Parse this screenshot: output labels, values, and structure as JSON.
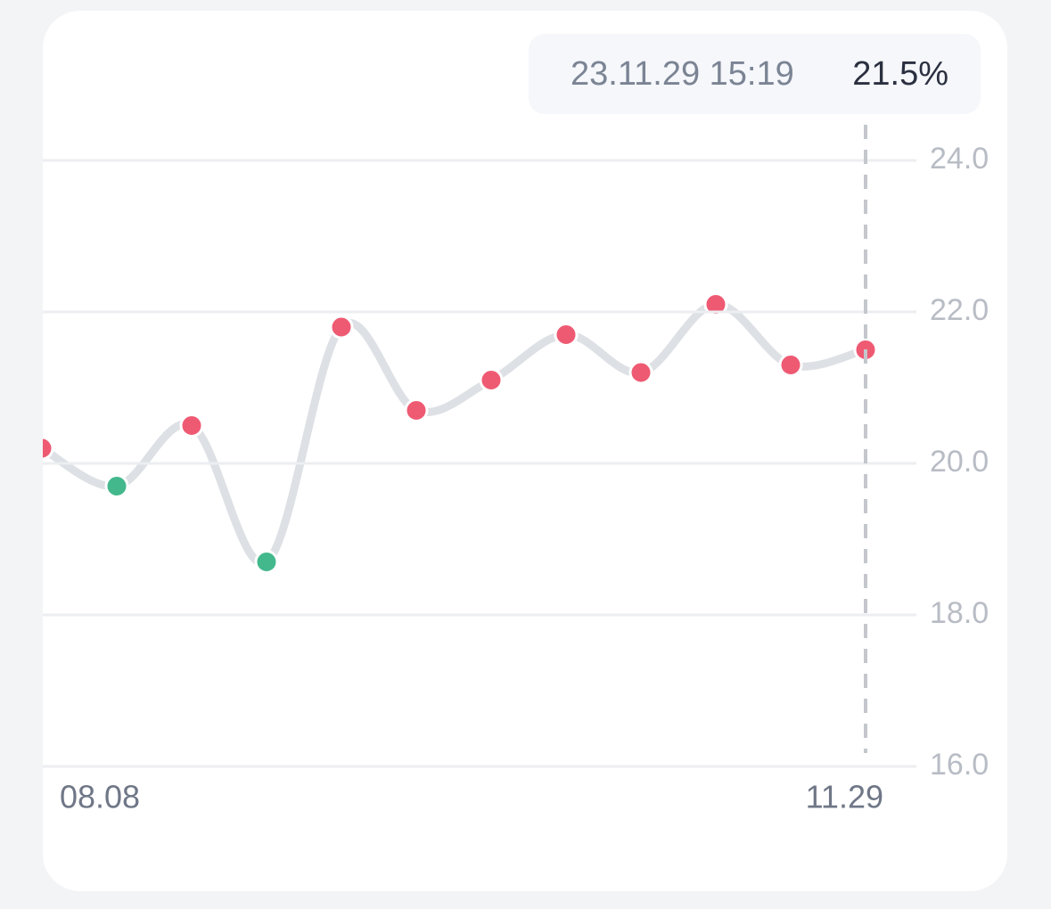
{
  "chart_data": {
    "type": "line",
    "categories": [
      null,
      "08.08",
      null,
      null,
      null,
      null,
      null,
      null,
      null,
      null,
      null,
      "11.29"
    ],
    "series": [
      {
        "color": "#dde0e4",
        "values": [
          20.2,
          19.7,
          20.5,
          18.7,
          21.8,
          20.7,
          21.1,
          21.7,
          21.2,
          22.1,
          21.3,
          21.5
        ],
        "marker_colors": [
          "#ef5a73",
          "#43b88c",
          "#ef5a73",
          "#43b88c",
          "#ef5a73",
          "#ef5a73",
          "#ef5a73",
          "#ef5a73",
          "#ef5a73",
          "#ef5a73",
          "#ef5a73",
          "#ef5a73"
        ]
      }
    ],
    "ylim": [
      16,
      24
    ],
    "yticks": [
      {
        "value": 16,
        "label": "16.0"
      },
      {
        "value": 18,
        "label": "18.0"
      },
      {
        "value": 20,
        "label": "20.0"
      },
      {
        "value": 22,
        "label": "22.0"
      },
      {
        "value": 24,
        "label": "24.0"
      }
    ],
    "grid": true,
    "tooltip": {
      "label": "23.11.29 15:19",
      "value_label": "21.5%"
    }
  }
}
